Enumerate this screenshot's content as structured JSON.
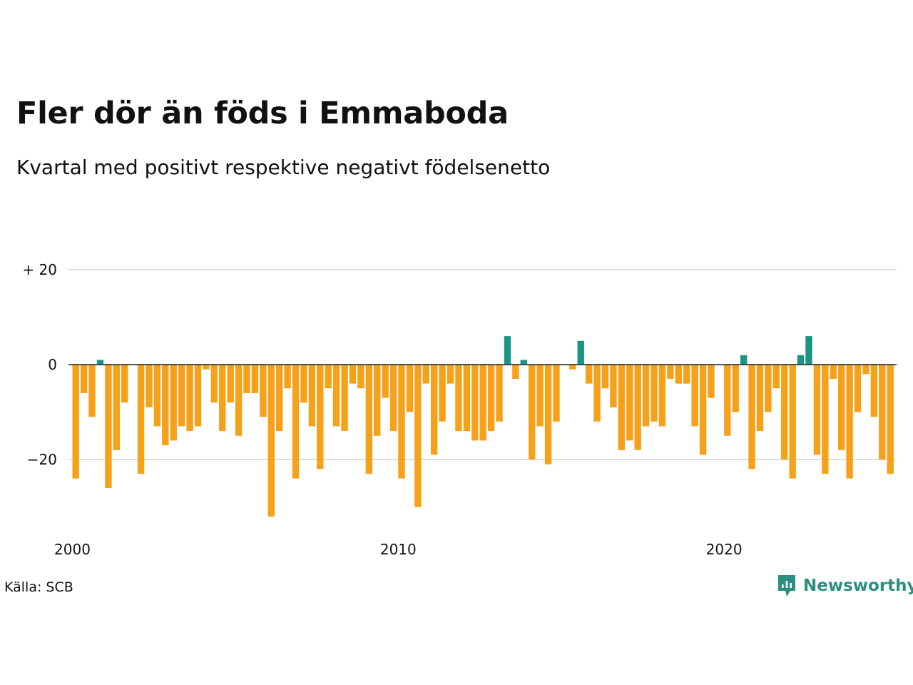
{
  "title": "Fler dör än föds i Emmaboda",
  "subtitle": "Kvartal med positivt respektive negativt födelsenetto",
  "source": "Källa: SCB",
  "brand": {
    "name": "Newsworthy",
    "color": "#2b8f80"
  },
  "colors": {
    "positive": "#1a9585",
    "negative": "#f6a11a",
    "grid": "#dddddd",
    "zero": "#222222"
  },
  "chart_data": {
    "type": "bar",
    "title": "Fler dör än föds i Emmaboda",
    "subtitle": "Kvartal med positivt respektive negativt födelsenetto",
    "x_start_year": 2000,
    "periods_per_year": 4,
    "ylim": [
      -35,
      30
    ],
    "y_ticks": [
      {
        "value": 20,
        "label": "+ 20"
      },
      {
        "value": 0,
        "label": "0"
      },
      {
        "value": -20,
        "label": "−20"
      }
    ],
    "x_ticks": [
      {
        "value": 2000,
        "label": "2000"
      },
      {
        "value": 2010,
        "label": "2010"
      },
      {
        "value": 2020,
        "label": "2020"
      }
    ],
    "grid": true,
    "values": [
      -24,
      -6,
      -11,
      1,
      -26,
      -18,
      -8,
      0,
      -23,
      -9,
      -13,
      -17,
      -16,
      -13,
      -14,
      -13,
      -1,
      -8,
      -14,
      -8,
      -15,
      -6,
      -6,
      -11,
      -32,
      -14,
      -5,
      -24,
      -8,
      -13,
      -22,
      -5,
      -13,
      -14,
      -4,
      -5,
      -23,
      -15,
      -7,
      -14,
      -24,
      -10,
      -30,
      -4,
      -19,
      -12,
      -4,
      -14,
      -14,
      -16,
      -16,
      -14,
      -12,
      6,
      -3,
      1,
      -20,
      -13,
      -21,
      -12,
      0,
      -1,
      5,
      -4,
      -12,
      -5,
      -9,
      -18,
      -16,
      -18,
      -13,
      -12,
      -13,
      -3,
      -4,
      -4,
      -13,
      -19,
      -7,
      0,
      -15,
      -10,
      2,
      -22,
      -14,
      -10,
      -5,
      -20,
      -24,
      2,
      6,
      -19,
      -23,
      -3,
      -18,
      -24,
      -10,
      -2,
      -11,
      -20,
      -23
    ]
  }
}
